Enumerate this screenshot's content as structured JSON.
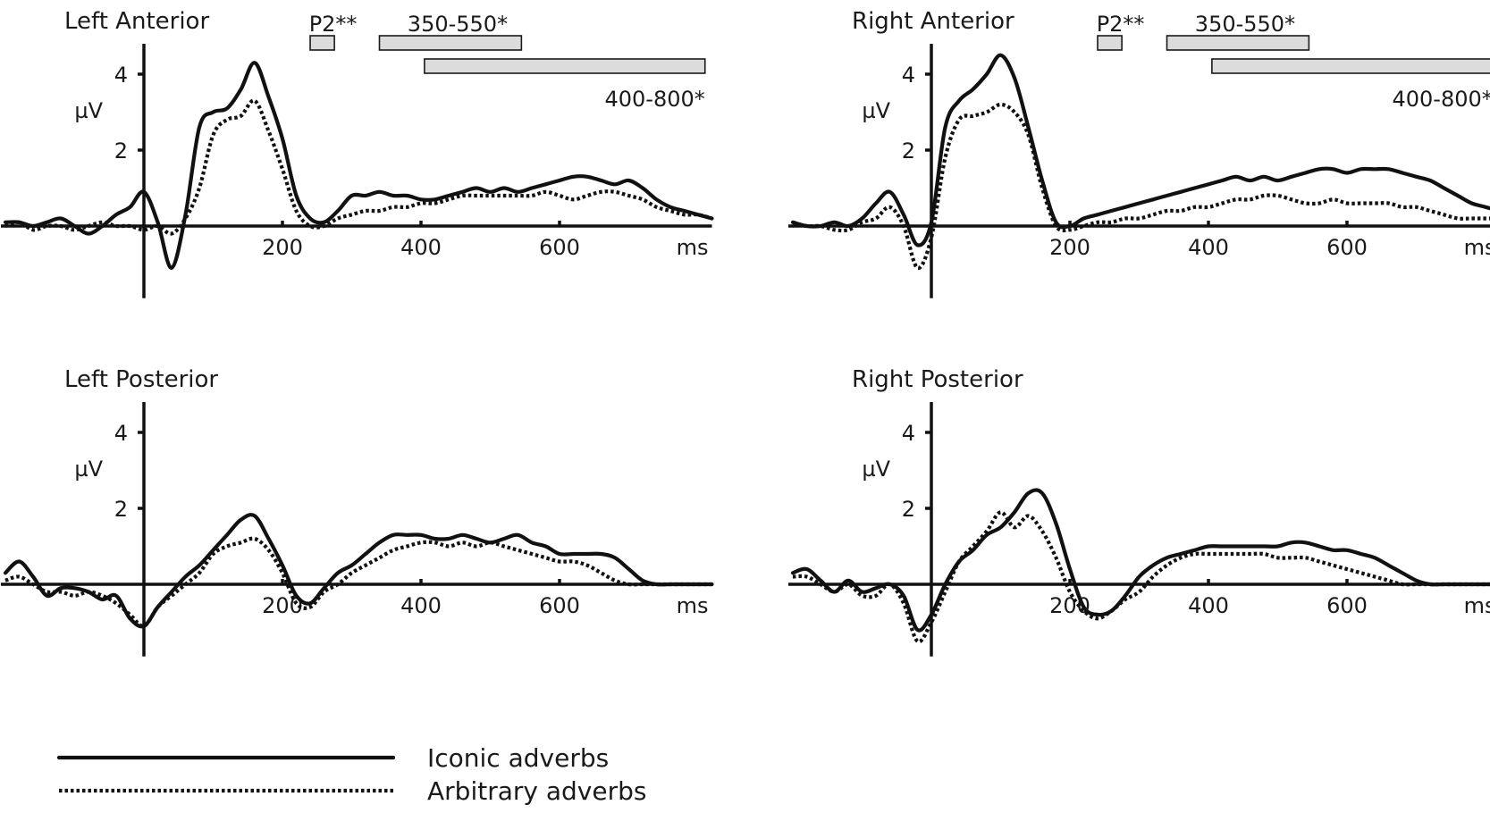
{
  "chart_data": [
    {
      "type": "line",
      "title": "Left Anterior",
      "ylabel": "µV",
      "x_unit_label": "ms",
      "xlim": [
        -200,
        820
      ],
      "ylim": [
        -1.9,
        4.8
      ],
      "x_ticks": [
        200,
        400,
        600
      ],
      "y_ticks": [
        2,
        4
      ],
      "windows": [
        {
          "label": "P2**",
          "start": 240,
          "end": 275,
          "row": 0
        },
        {
          "label": "350-550*",
          "start": 340,
          "end": 545,
          "row": 0
        },
        {
          "label": "400-800*",
          "start": 405,
          "end": 810,
          "row": 1
        }
      ],
      "x": [
        -200,
        -180,
        -160,
        -140,
        -120,
        -100,
        -80,
        -60,
        -40,
        -20,
        0,
        20,
        40,
        60,
        80,
        100,
        120,
        140,
        160,
        180,
        200,
        220,
        240,
        260,
        280,
        300,
        320,
        340,
        360,
        380,
        400,
        420,
        440,
        460,
        480,
        500,
        520,
        540,
        560,
        580,
        600,
        620,
        640,
        660,
        680,
        700,
        720,
        740,
        760,
        780,
        800,
        820
      ],
      "series": [
        {
          "name": "Iconic adverbs",
          "style": "solid",
          "values": [
            0.1,
            0.1,
            0.0,
            0.1,
            0.2,
            0.0,
            -0.2,
            0.0,
            0.3,
            0.5,
            0.9,
            0.1,
            -1.1,
            0.3,
            2.6,
            3.0,
            3.1,
            3.6,
            4.3,
            3.4,
            2.3,
            0.8,
            0.2,
            0.1,
            0.4,
            0.8,
            0.8,
            0.9,
            0.8,
            0.8,
            0.7,
            0.7,
            0.8,
            0.9,
            1.0,
            0.9,
            1.0,
            0.9,
            1.0,
            1.1,
            1.2,
            1.3,
            1.3,
            1.2,
            1.1,
            1.2,
            1.0,
            0.7,
            0.5,
            0.4,
            0.3,
            0.2
          ]
        },
        {
          "name": "Arbitrary adverbs",
          "style": "dotted",
          "values": [
            0.0,
            0.1,
            -0.1,
            0.0,
            0.0,
            -0.1,
            0.0,
            0.1,
            0.0,
            0.0,
            -0.1,
            0.0,
            -0.2,
            0.2,
            1.0,
            2.4,
            2.8,
            2.9,
            3.3,
            2.5,
            1.5,
            0.4,
            0.0,
            0.0,
            0.2,
            0.3,
            0.4,
            0.4,
            0.5,
            0.5,
            0.6,
            0.6,
            0.7,
            0.8,
            0.8,
            0.8,
            0.8,
            0.8,
            0.8,
            0.9,
            0.8,
            0.7,
            0.8,
            0.9,
            0.9,
            0.8,
            0.7,
            0.5,
            0.4,
            0.3,
            0.3,
            0.2
          ]
        }
      ]
    },
    {
      "type": "line",
      "title": "Right Anterior",
      "ylabel": "µV",
      "x_unit_label": "ms",
      "xlim": [
        -200,
        820
      ],
      "ylim": [
        -1.9,
        4.8
      ],
      "x_ticks": [
        200,
        400,
        600
      ],
      "y_ticks": [
        2,
        4
      ],
      "windows": [
        {
          "label": "P2**",
          "start": 240,
          "end": 275,
          "row": 0
        },
        {
          "label": "350-550*",
          "start": 340,
          "end": 545,
          "row": 0
        },
        {
          "label": "400-800*",
          "start": 405,
          "end": 810,
          "row": 1
        }
      ],
      "x": [
        -200,
        -180,
        -160,
        -140,
        -120,
        -100,
        -80,
        -60,
        -40,
        -20,
        0,
        20,
        40,
        60,
        80,
        100,
        120,
        140,
        160,
        180,
        200,
        220,
        240,
        260,
        280,
        300,
        320,
        340,
        360,
        380,
        400,
        420,
        440,
        460,
        480,
        500,
        520,
        540,
        560,
        580,
        600,
        620,
        640,
        660,
        680,
        700,
        720,
        740,
        760,
        780,
        800,
        820
      ],
      "series": [
        {
          "name": "Iconic adverbs",
          "style": "solid",
          "values": [
            0.1,
            0.0,
            0.0,
            0.1,
            0.0,
            0.2,
            0.6,
            0.9,
            0.3,
            -0.5,
            0.1,
            2.6,
            3.3,
            3.6,
            4.0,
            4.5,
            3.9,
            2.6,
            1.2,
            0.1,
            0.0,
            0.2,
            0.3,
            0.4,
            0.5,
            0.6,
            0.7,
            0.8,
            0.9,
            1.0,
            1.1,
            1.2,
            1.3,
            1.2,
            1.3,
            1.2,
            1.3,
            1.4,
            1.5,
            1.5,
            1.4,
            1.5,
            1.5,
            1.5,
            1.4,
            1.3,
            1.2,
            1.0,
            0.8,
            0.6,
            0.5,
            0.4
          ]
        },
        {
          "name": "Arbitrary adverbs",
          "style": "dotted",
          "values": [
            0.1,
            0.0,
            0.0,
            -0.1,
            -0.1,
            0.1,
            0.2,
            0.5,
            0.0,
            -1.1,
            -0.3,
            1.8,
            2.8,
            2.9,
            3.0,
            3.2,
            3.0,
            2.4,
            1.0,
            0.0,
            -0.1,
            0.0,
            0.1,
            0.1,
            0.2,
            0.2,
            0.3,
            0.4,
            0.4,
            0.5,
            0.5,
            0.6,
            0.7,
            0.7,
            0.8,
            0.8,
            0.7,
            0.6,
            0.6,
            0.7,
            0.6,
            0.6,
            0.6,
            0.6,
            0.5,
            0.5,
            0.4,
            0.3,
            0.2,
            0.2,
            0.2,
            0.2
          ]
        }
      ]
    },
    {
      "type": "line",
      "title": "Left Posterior",
      "ylabel": "µV",
      "x_unit_label": "ms",
      "xlim": [
        -200,
        820
      ],
      "ylim": [
        -1.9,
        4.8
      ],
      "x_ticks": [
        200,
        400,
        600
      ],
      "y_ticks": [
        2,
        4
      ],
      "windows": [],
      "x": [
        -200,
        -180,
        -160,
        -140,
        -120,
        -100,
        -80,
        -60,
        -40,
        -20,
        0,
        20,
        40,
        60,
        80,
        100,
        120,
        140,
        160,
        180,
        200,
        220,
        240,
        260,
        280,
        300,
        320,
        340,
        360,
        380,
        400,
        420,
        440,
        460,
        480,
        500,
        520,
        540,
        560,
        580,
        600,
        620,
        640,
        660,
        680,
        700,
        720,
        740,
        760,
        780,
        800,
        820
      ],
      "series": [
        {
          "name": "Iconic adverbs",
          "style": "solid",
          "values": [
            0.3,
            0.6,
            0.2,
            -0.3,
            -0.1,
            -0.1,
            -0.2,
            -0.4,
            -0.3,
            -0.9,
            -1.1,
            -0.6,
            -0.2,
            0.2,
            0.5,
            0.9,
            1.3,
            1.7,
            1.8,
            1.2,
            0.5,
            -0.3,
            -0.5,
            -0.1,
            0.3,
            0.5,
            0.8,
            1.1,
            1.3,
            1.3,
            1.3,
            1.2,
            1.2,
            1.3,
            1.2,
            1.1,
            1.2,
            1.3,
            1.1,
            1.0,
            0.8,
            0.8,
            0.8,
            0.8,
            0.7,
            0.4,
            0.1,
            0.0,
            0.0,
            0.0,
            0.0,
            0.0
          ]
        },
        {
          "name": "Arbitrary adverbs",
          "style": "dotted",
          "values": [
            0.1,
            0.2,
            0.0,
            -0.2,
            -0.2,
            -0.3,
            -0.2,
            -0.3,
            -0.5,
            -0.8,
            -1.1,
            -0.6,
            -0.3,
            0.0,
            0.3,
            0.8,
            1.0,
            1.1,
            1.2,
            0.9,
            0.3,
            -0.5,
            -0.6,
            -0.2,
            0.0,
            0.3,
            0.5,
            0.7,
            0.9,
            1.0,
            1.1,
            1.1,
            1.0,
            1.1,
            1.0,
            1.1,
            1.0,
            0.9,
            0.8,
            0.7,
            0.6,
            0.6,
            0.5,
            0.3,
            0.1,
            0.0,
            0.0,
            0.0,
            0.0,
            0.0,
            0.0,
            0.0
          ]
        }
      ]
    },
    {
      "type": "line",
      "title": "Right Posterior",
      "ylabel": "µV",
      "x_unit_label": "ms",
      "xlim": [
        -200,
        820
      ],
      "ylim": [
        -1.9,
        4.8
      ],
      "x_ticks": [
        200,
        400,
        600
      ],
      "y_ticks": [
        2,
        4
      ],
      "windows": [],
      "x": [
        -200,
        -180,
        -160,
        -140,
        -120,
        -100,
        -80,
        -60,
        -40,
        -20,
        0,
        20,
        40,
        60,
        80,
        100,
        120,
        140,
        160,
        180,
        200,
        220,
        240,
        260,
        280,
        300,
        320,
        340,
        360,
        380,
        400,
        420,
        440,
        460,
        480,
        500,
        520,
        540,
        560,
        580,
        600,
        620,
        640,
        660,
        680,
        700,
        720,
        740,
        760,
        780,
        800,
        820
      ],
      "series": [
        {
          "name": "Iconic adverbs",
          "style": "solid",
          "values": [
            0.3,
            0.4,
            0.1,
            -0.2,
            0.1,
            -0.2,
            -0.1,
            0.0,
            -0.3,
            -1.2,
            -0.8,
            0.0,
            0.6,
            0.9,
            1.3,
            1.5,
            1.9,
            2.4,
            2.4,
            1.6,
            0.4,
            -0.6,
            -0.8,
            -0.7,
            -0.3,
            0.2,
            0.5,
            0.7,
            0.8,
            0.9,
            1.0,
            1.0,
            1.0,
            1.0,
            1.0,
            1.0,
            1.1,
            1.1,
            1.0,
            0.9,
            0.9,
            0.8,
            0.7,
            0.5,
            0.3,
            0.1,
            0.0,
            0.0,
            0.0,
            0.0,
            0.0,
            0.0
          ]
        },
        {
          "name": "Arbitrary adverbs",
          "style": "dotted",
          "values": [
            0.2,
            0.2,
            0.0,
            -0.2,
            0.0,
            -0.3,
            -0.3,
            0.0,
            -0.5,
            -1.5,
            -1.0,
            -0.2,
            0.6,
            1.0,
            1.4,
            1.9,
            1.5,
            1.8,
            1.4,
            0.7,
            -0.2,
            -0.7,
            -0.9,
            -0.7,
            -0.4,
            -0.2,
            0.2,
            0.5,
            0.7,
            0.8,
            0.8,
            0.8,
            0.8,
            0.8,
            0.8,
            0.7,
            0.7,
            0.7,
            0.6,
            0.5,
            0.4,
            0.3,
            0.2,
            0.1,
            0.0,
            0.0,
            0.0,
            0.0,
            0.0,
            0.0,
            0.0,
            0.0
          ]
        }
      ]
    }
  ],
  "legend": {
    "items": [
      {
        "label": "Iconic adverbs",
        "style": "solid"
      },
      {
        "label": "Arbitrary adverbs",
        "style": "dotted"
      }
    ]
  }
}
